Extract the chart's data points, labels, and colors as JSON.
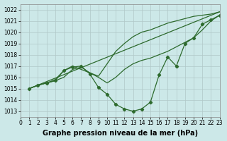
{
  "series": [
    {
      "name": "line_straight",
      "x": [
        1,
        23
      ],
      "y": [
        1015.0,
        1021.8
      ],
      "has_markers": false,
      "lw": 0.9
    },
    {
      "name": "line_upper",
      "x": [
        1,
        2,
        3,
        4,
        5,
        6,
        7,
        8,
        9,
        10,
        11,
        12,
        13,
        14,
        15,
        16,
        17,
        18,
        19,
        20,
        21,
        22,
        23
      ],
      "y": [
        1015.0,
        1015.3,
        1015.5,
        1015.8,
        1016.6,
        1017.0,
        1016.7,
        1016.4,
        1016.1,
        1017.2,
        1018.3,
        1019.0,
        1019.6,
        1020.0,
        1020.2,
        1020.5,
        1020.8,
        1021.0,
        1021.2,
        1021.4,
        1021.5,
        1021.6,
        1021.8
      ],
      "has_markers": false,
      "lw": 0.9
    },
    {
      "name": "line_mid",
      "x": [
        1,
        2,
        3,
        4,
        5,
        6,
        7,
        8,
        9,
        10,
        11,
        12,
        13,
        14,
        15,
        16,
        17,
        18,
        19,
        20,
        21,
        22,
        23
      ],
      "y": [
        1015.0,
        1015.3,
        1015.5,
        1015.7,
        1016.0,
        1016.7,
        1016.9,
        1016.4,
        1016.0,
        1015.5,
        1016.0,
        1016.7,
        1017.2,
        1017.5,
        1017.7,
        1018.0,
        1018.3,
        1018.7,
        1019.1,
        1019.5,
        1020.2,
        1021.0,
        1021.5
      ],
      "has_markers": false,
      "lw": 0.9
    },
    {
      "name": "line_wavy",
      "x": [
        1,
        2,
        3,
        4,
        5,
        6,
        7,
        8,
        9,
        10,
        11,
        12,
        13,
        14,
        15,
        16,
        17,
        18,
        19,
        20,
        21,
        22,
        23
      ],
      "y": [
        1015.0,
        1015.3,
        1015.5,
        1015.7,
        1016.6,
        1016.9,
        1017.0,
        1016.3,
        1015.1,
        1014.5,
        1013.6,
        1013.2,
        1013.0,
        1013.2,
        1013.8,
        1016.2,
        1017.8,
        1017.0,
        1019.0,
        1019.5,
        1020.7,
        1021.1,
        1021.5
      ],
      "has_markers": true,
      "lw": 0.9
    }
  ],
  "line_color": "#2d6a2d",
  "marker_style": "D",
  "marker_size": 2.2,
  "bg_color": "#cce8e8",
  "grid_color": "#b0c8c8",
  "xlim": [
    0,
    23
  ],
  "ylim": [
    1012.5,
    1022.5
  ],
  "xticks": [
    0,
    1,
    2,
    3,
    4,
    5,
    6,
    7,
    8,
    9,
    10,
    11,
    12,
    13,
    14,
    15,
    16,
    17,
    18,
    19,
    20,
    21,
    22,
    23
  ],
  "yticks": [
    1013,
    1014,
    1015,
    1016,
    1017,
    1018,
    1019,
    1020,
    1021,
    1022
  ],
  "xlabel": "Graphe pression niveau de la mer (hPa)",
  "xlabel_fontsize": 7,
  "tick_fontsize": 5.5
}
